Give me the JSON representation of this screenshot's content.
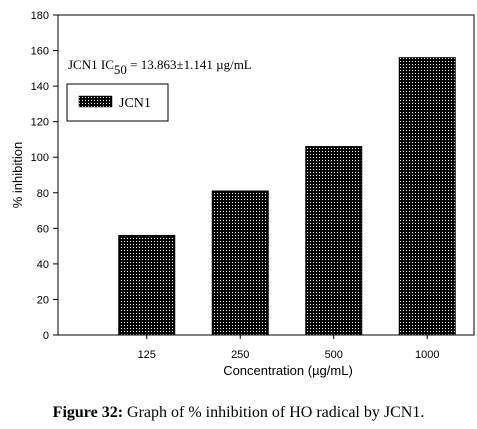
{
  "chart_data": {
    "type": "bar",
    "categories": [
      "125",
      "250",
      "500",
      "1000"
    ],
    "series": [
      {
        "name": "JCN1",
        "values": [
          56,
          81,
          106,
          156
        ]
      }
    ],
    "xlabel": "Concentration (µg/mL)",
    "ylabel": "% inhibition",
    "ylim": [
      0,
      180
    ],
    "yticks": [
      0,
      20,
      40,
      60,
      80,
      100,
      120,
      140,
      160,
      180
    ],
    "grid": false,
    "legend": "top-left",
    "bar_pattern": "black-dotted",
    "annotation": {
      "prefix": "JCN1 IC",
      "subscript": "50",
      "suffix": " =  13.863±1.141 µg/mL"
    }
  },
  "caption": {
    "label": "Figure 32:",
    "text": " Graph of % inhibition of HO radical by JCN1."
  }
}
